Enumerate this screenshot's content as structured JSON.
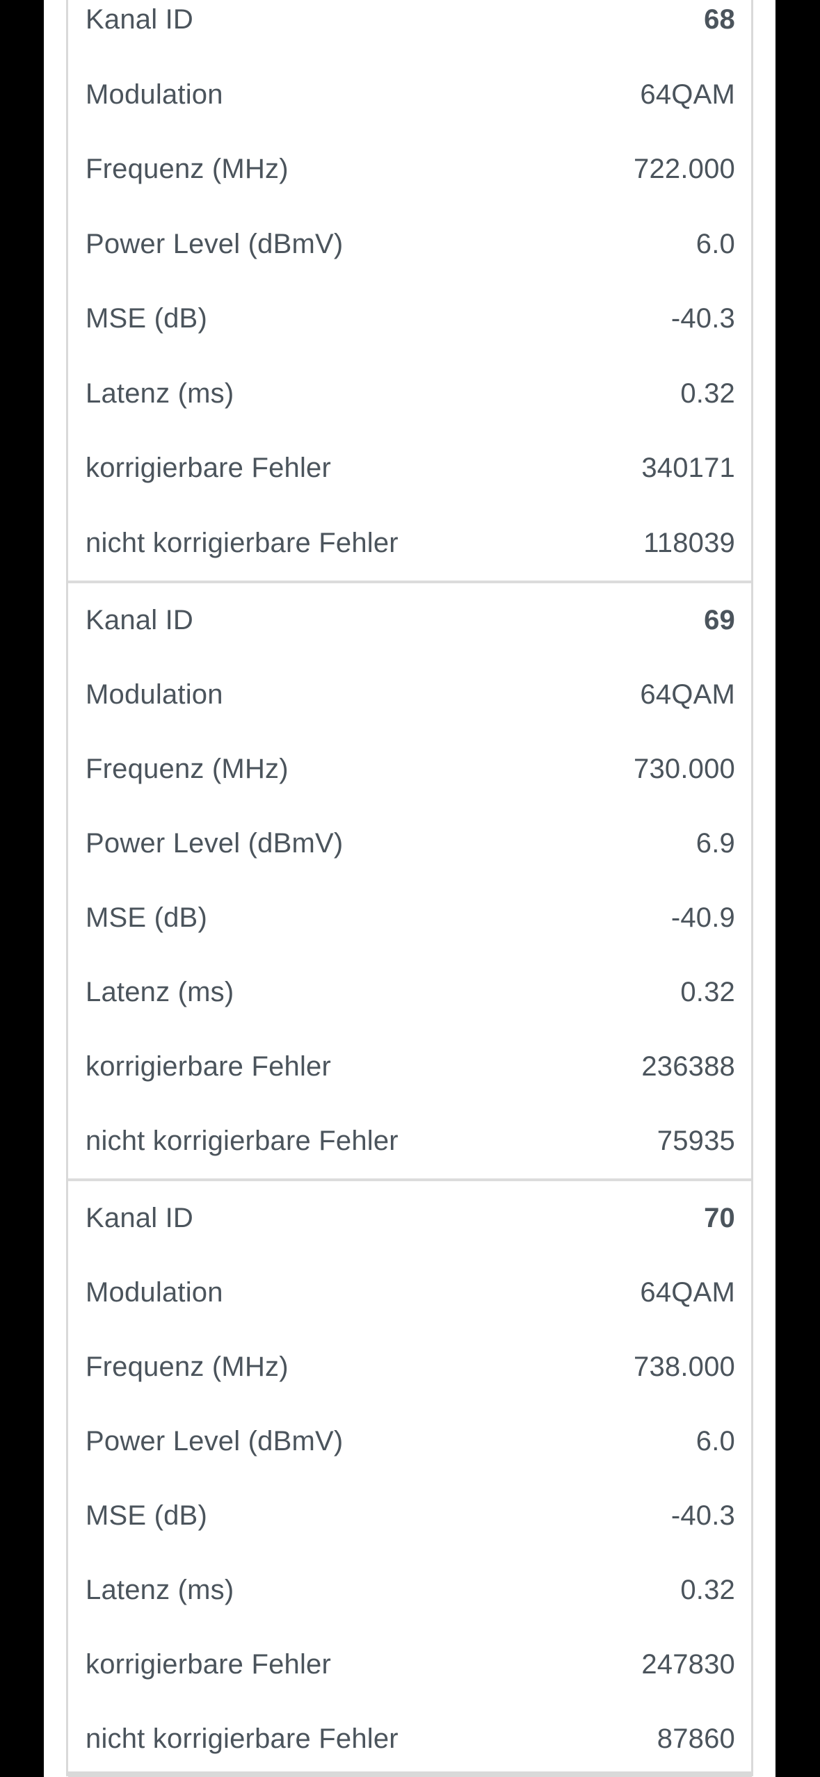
{
  "colors": {
    "text": "#4b545c",
    "separator": "#dcdcdc",
    "table_border": "#d9d9d9",
    "pillarbox": "#000000",
    "background": "#ffffff"
  },
  "table": {
    "labels": {
      "kanal_id": "Kanal ID",
      "modulation": "Modulation",
      "frequenz": "Frequenz (MHz)",
      "power_level": "Power Level (dBmV)",
      "mse": "MSE (dB)",
      "latenz": "Latenz (ms)",
      "korrigierbare_fehler": "korrigierbare Fehler",
      "nicht_korrigierbare_fehler": "nicht korrigierbare Fehler"
    },
    "channels": [
      {
        "kanal_id": "68",
        "modulation": "64QAM",
        "frequenz": "722.000",
        "power_level": "6.0",
        "mse": "-40.3",
        "latenz": "0.32",
        "korrigierbare_fehler": "340171",
        "nicht_korrigierbare_fehler": "118039"
      },
      {
        "kanal_id": "69",
        "modulation": "64QAM",
        "frequenz": "730.000",
        "power_level": "6.9",
        "mse": "-40.9",
        "latenz": "0.32",
        "korrigierbare_fehler": "236388",
        "nicht_korrigierbare_fehler": "75935"
      },
      {
        "kanal_id": "70",
        "modulation": "64QAM",
        "frequenz": "738.000",
        "power_level": "6.0",
        "mse": "-40.3",
        "latenz": "0.32",
        "korrigierbare_fehler": "247830",
        "nicht_korrigierbare_fehler": "87860"
      }
    ]
  }
}
